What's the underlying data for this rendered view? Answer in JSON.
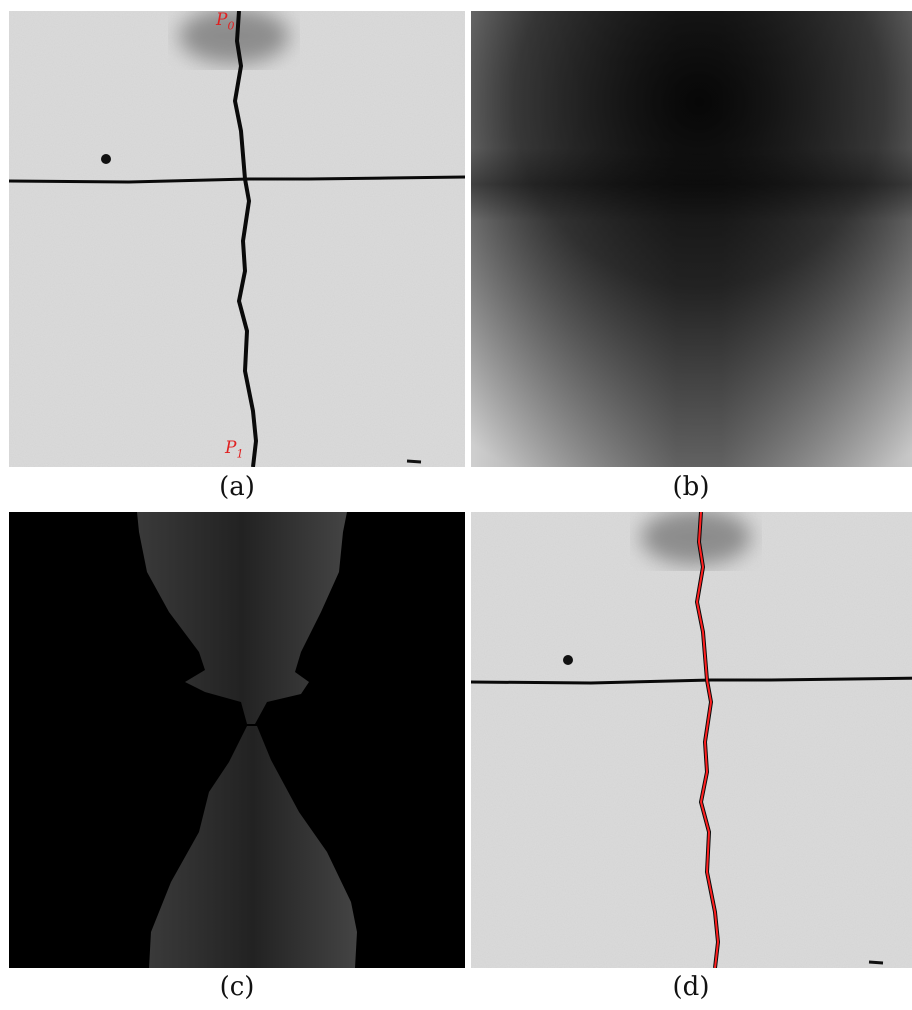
{
  "captions": {
    "a": "(a)",
    "b": "(b)",
    "c": "(c)",
    "d": "(d)"
  },
  "points": {
    "start": {
      "base": "P",
      "sub": "0"
    },
    "end": {
      "base": "P",
      "sub": "1"
    }
  },
  "colors": {
    "path": "#ff2020",
    "label": "#e02020",
    "crack": "#0a0a0a"
  }
}
